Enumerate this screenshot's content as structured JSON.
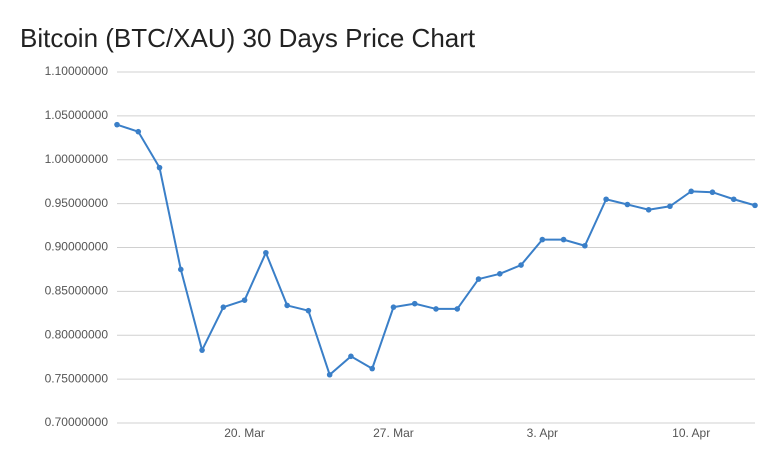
{
  "chart_data": {
    "type": "line",
    "title": "Bitcoin (BTC/XAU) 30 Days Price Chart",
    "categories": [
      null,
      null,
      null,
      null,
      null,
      null,
      "20. Mar",
      null,
      null,
      null,
      null,
      null,
      null,
      "27. Mar",
      null,
      null,
      null,
      null,
      null,
      null,
      "3. Apr",
      null,
      null,
      null,
      null,
      null,
      null,
      "10. Apr",
      null,
      null,
      null
    ],
    "series": [
      {
        "name": "BTC/XAU",
        "color": "#3a7fc8",
        "values": [
          1.04,
          1.032,
          0.991,
          0.875,
          0.783,
          0.832,
          0.84,
          0.894,
          0.834,
          0.828,
          0.755,
          0.776,
          0.762,
          0.832,
          0.836,
          0.83,
          0.83,
          0.864,
          0.87,
          0.88,
          0.909,
          0.909,
          0.902,
          0.955,
          0.949,
          0.943,
          0.947,
          0.964,
          0.963,
          0.955,
          0.948
        ]
      }
    ],
    "ylim": [
      0.7,
      1.1
    ],
    "yticks": [
      {
        "value": 0.7,
        "label": "0.70000000"
      },
      {
        "value": 0.75,
        "label": "0.75000000"
      },
      {
        "value": 0.8,
        "label": "0.80000000"
      },
      {
        "value": 0.85,
        "label": "0.85000000"
      },
      {
        "value": 0.9,
        "label": "0.90000000"
      },
      {
        "value": 0.95,
        "label": "0.95000000"
      },
      {
        "value": 1.0,
        "label": "1.00000000"
      },
      {
        "value": 1.05,
        "label": "1.05000000"
      },
      {
        "value": 1.1,
        "label": "1.10000000"
      }
    ],
    "grid": true
  }
}
